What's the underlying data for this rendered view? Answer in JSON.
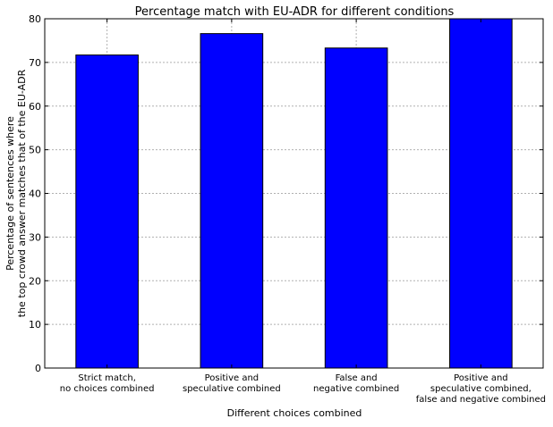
{
  "chart_data": {
    "type": "bar",
    "title": "Percentage match with EU-ADR for different conditions",
    "xlabel": "Different choices combined",
    "ylabel": [
      "Percentage of sentences where",
      "the top crowd answer matches that of the EU-ADR"
    ],
    "categories": [
      [
        "Strict match,",
        "no choices combined"
      ],
      [
        "Positive and",
        "speculative combined"
      ],
      [
        "False and",
        "negative combined"
      ],
      [
        "Positive and",
        "speculative combined,",
        "false and negative combined"
      ]
    ],
    "values": [
      71.7,
      76.6,
      73.3,
      80.0
    ],
    "ylim": [
      0,
      80
    ],
    "yticks": [
      "0",
      "10",
      "20",
      "30",
      "40",
      "50",
      "60",
      "70",
      "80"
    ],
    "grid": true,
    "bar_color": "#0000ff",
    "bar_edge_color": "#000000",
    "grid_color": "#b0b0b0"
  }
}
